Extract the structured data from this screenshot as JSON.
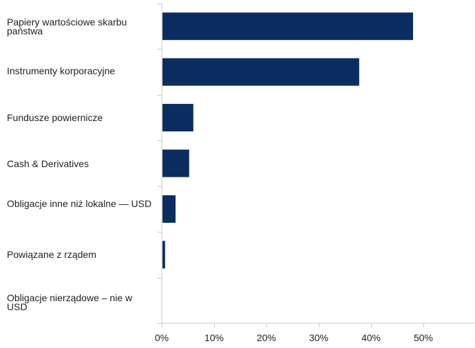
{
  "chart_data": {
    "type": "bar",
    "orientation": "horizontal",
    "categories": [
      "Papiery wartościowe skarbu państwa",
      "Instrumenty korporacyjne",
      "Fundusze powiernicze",
      "Cash & Derivatives",
      "Obligacje inne niż lokalne — USD",
      "Powiązane z rządem",
      "Obligacje nierządowe – nie w USD"
    ],
    "values": [
      47.9,
      37.6,
      5.9,
      5.1,
      2.5,
      0.5,
      0.0
    ],
    "xlim": [
      0,
      60
    ],
    "ticks": [
      "0%",
      "10%",
      "20%",
      "30%",
      "40%",
      "50%"
    ],
    "tick_values": [
      0,
      10,
      20,
      30,
      40,
      50
    ],
    "bar_color": "#0b2d5f",
    "axis_color": "#c8c8c8",
    "grid": false
  }
}
